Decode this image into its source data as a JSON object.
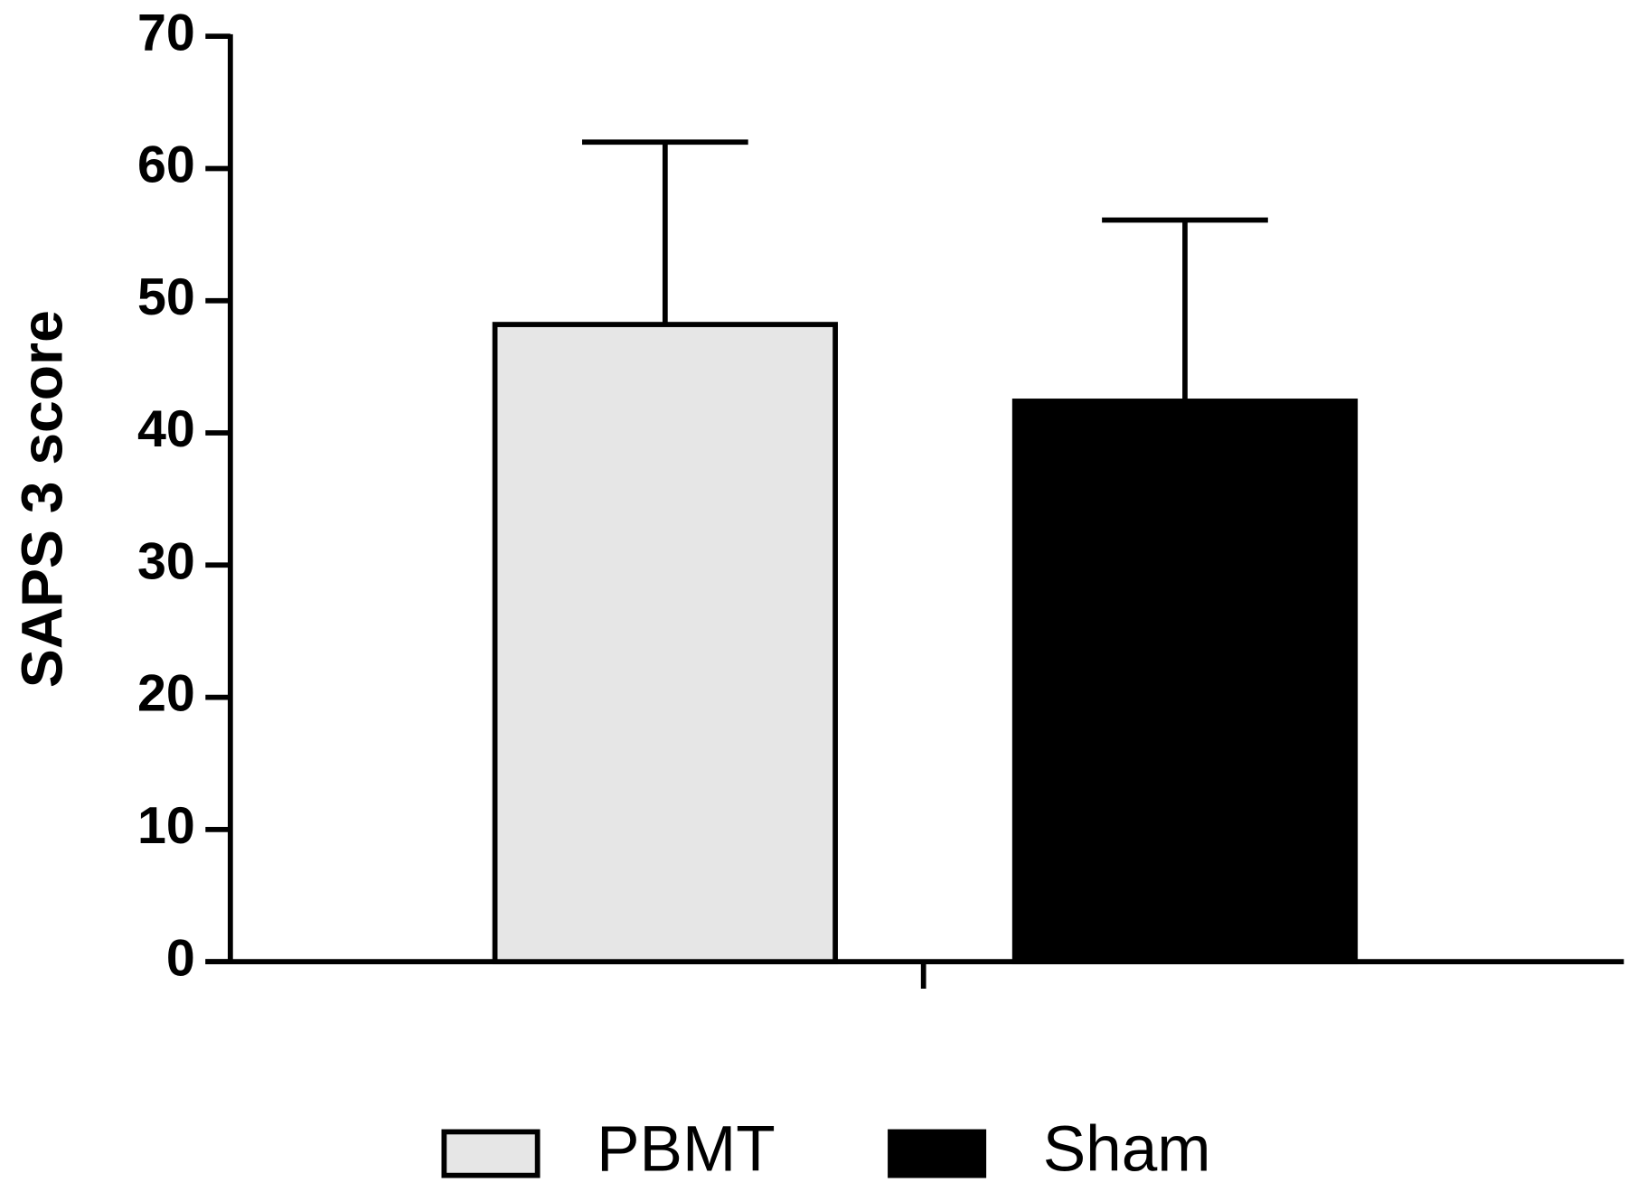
{
  "chart_data": {
    "type": "bar",
    "y_label": "SAPS 3 score",
    "categories": [
      null
    ],
    "series": [
      {
        "name": "PBMT",
        "color": "#e6e6e6",
        "values": [
          48.2
        ],
        "errors": [
          13.8
        ]
      },
      {
        "name": "Sham",
        "color": "#000000",
        "values": [
          42.4
        ],
        "errors": [
          13.7
        ]
      }
    ],
    "ylim": [
      0,
      70
    ],
    "yticks": [
      0,
      10,
      20,
      30,
      40,
      50,
      60,
      70
    ],
    "grid": false,
    "legend": "bottom"
  }
}
